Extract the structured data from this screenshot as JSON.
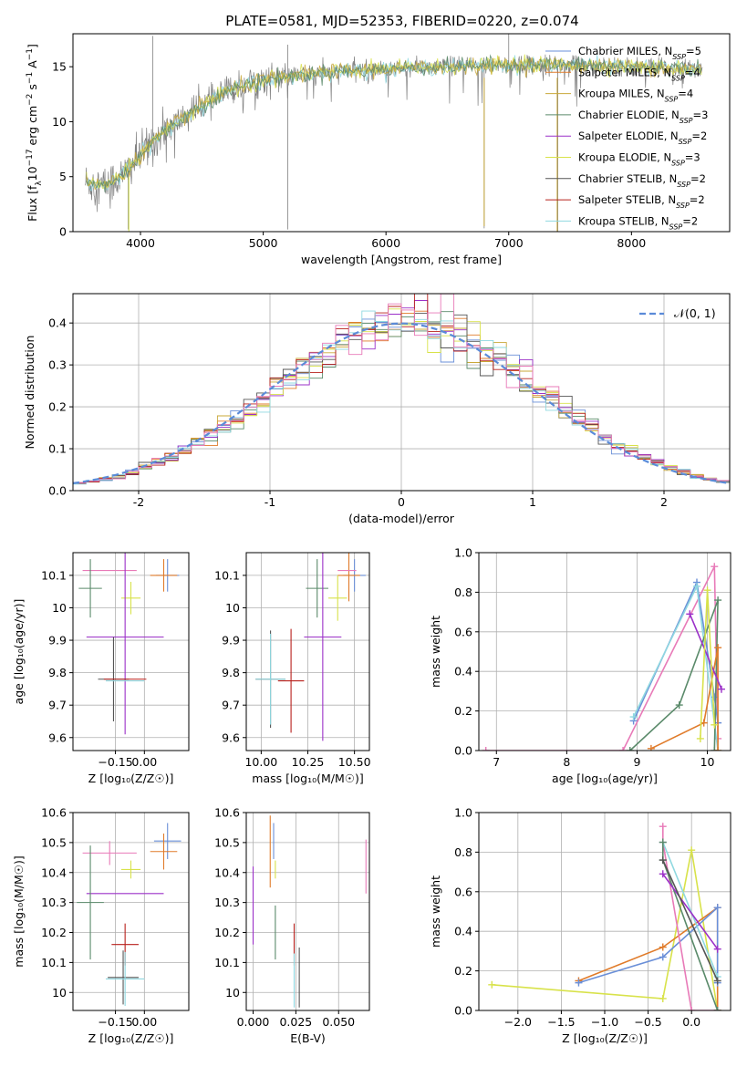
{
  "figure": {
    "title": "PLATE=0581, MJD=52353, FIBERID=0220, z=0.074"
  },
  "colors": {
    "c0": "#6a8fd8",
    "c1": "#e07b2a",
    "c2": "#c9a83a",
    "c3": "#5a8a6a",
    "c4": "#9b30c8",
    "c5": "#d8e24a",
    "c6": "#555555",
    "c7": "#b8201c",
    "c8": "#8fd8e0",
    "pink": "#e87ab8",
    "spec_gray": "#808080",
    "grid": "#b0b0b0",
    "dashed_gauss": "#5b8bd8"
  },
  "chart_data": [
    {
      "id": "spectrum",
      "type": "line",
      "xlabel": "wavelength [Angstrom, rest frame]",
      "ylabel": "Flux [f$_\\lambda$10$^{-17}$ erg cm$^{-2}$ s$^{-1}$ A$^{-1}$]",
      "ylabel_parts": [
        "Flux [f",
        "λ",
        "10",
        "−17",
        " erg cm",
        "−2",
        " s",
        "−1",
        " A",
        "−1",
        "]"
      ],
      "xlim": [
        3450,
        8800
      ],
      "ylim": [
        0,
        18
      ],
      "xticks": [
        4000,
        5000,
        6000,
        7000,
        8000
      ],
      "yticks": [
        0,
        5,
        10,
        15
      ],
      "grid": false,
      "legend_position": "top-right",
      "legend": [
        {
          "model": "Chabrier MILES",
          "nssp": "5"
        },
        {
          "model": "Salpeter MILES",
          "nssp": "4"
        },
        {
          "model": "Kroupa MILES",
          "nssp": "4"
        },
        {
          "model": "Chabrier ELODIE",
          "nssp": "3"
        },
        {
          "model": "Salpeter ELODIE",
          "nssp": "2"
        },
        {
          "model": "Kroupa ELODIE",
          "nssp": "3"
        },
        {
          "model": "Chabrier STELIB",
          "nssp": "2"
        },
        {
          "model": "Salpeter STELIB",
          "nssp": "2"
        },
        {
          "model": "Kroupa STELIB",
          "nssp": "2"
        }
      ],
      "continuum": {
        "x": [
          3550,
          3700,
          3850,
          4000,
          4100,
          4300,
          4500,
          4800,
          5000,
          5500,
          6000,
          6500,
          7000,
          7500,
          8000,
          8500,
          8800
        ],
        "y": [
          4.5,
          4.2,
          5.0,
          7.0,
          8.2,
          10.0,
          11.5,
          13.2,
          13.8,
          14.5,
          14.8,
          15.0,
          15.2,
          15.2,
          15.0,
          14.8,
          14.6
        ]
      },
      "dips": [
        {
          "x": 3900,
          "y": 0.2
        },
        {
          "x": 5200,
          "y": 0.2
        },
        {
          "x": 6800,
          "y": 0.3
        },
        {
          "x": 7400,
          "y": 0.0
        }
      ],
      "spikes": [
        {
          "x": 4100,
          "y": 17.8
        },
        {
          "x": 5200,
          "y": 17.0
        },
        {
          "x": 7000,
          "y": 18.0
        }
      ]
    },
    {
      "id": "residuals",
      "type": "area",
      "xlabel": "(data-model)/error",
      "ylabel": "Normed distribution",
      "xlim": [
        -2.5,
        2.5
      ],
      "ylim": [
        0,
        0.47
      ],
      "xticks": [
        -2,
        -1,
        0,
        1,
        2
      ],
      "yticks": [
        0.0,
        0.1,
        0.2,
        0.3,
        0.4
      ],
      "ytick_labels": [
        "0.0",
        "0.1",
        "0.2",
        "0.3",
        "0.4"
      ],
      "grid": true,
      "legend_position": "top-right",
      "legend_label": "𝒩(0, 1)",
      "bin_width": 0.1
    },
    {
      "id": "age_vs_Z",
      "type": "scatter",
      "xlabel": "Z [log₁₀(Z/Z☉)]",
      "ylabel": "age  [log₁₀(age/yr)]",
      "xlim": [
        -0.37,
        0.23
      ],
      "ylim": [
        9.56,
        10.17
      ],
      "xticks": [
        -0.15,
        0.0
      ],
      "xtick_labels": [
        "−0.15",
        "0.00"
      ],
      "yticks": [
        9.6,
        9.7,
        9.8,
        9.9,
        10.0,
        10.1
      ],
      "grid": true,
      "points": [
        {
          "c": "c0",
          "x": 0.12,
          "y": 10.1,
          "xe": 0.06,
          "ye": 0.05
        },
        {
          "c": "c1",
          "x": 0.1,
          "y": 10.1,
          "xe": 0.07,
          "ye": 0.05
        },
        {
          "c": "pink",
          "x": -0.18,
          "y": 10.115,
          "xe": 0.14,
          "ye": 0.0
        },
        {
          "c": "c3",
          "x": -0.28,
          "y": 10.06,
          "xe": 0.06,
          "ye": 0.09
        },
        {
          "c": "c5",
          "x": -0.07,
          "y": 10.03,
          "xe": 0.05,
          "ye": 0.05
        },
        {
          "c": "c4",
          "x": -0.1,
          "y": 9.91,
          "xe": 0.2,
          "ye": 0.3
        },
        {
          "c": "c6",
          "x": -0.16,
          "y": 9.78,
          "xe": 0.08,
          "ye": 0.13
        },
        {
          "c": "c7",
          "x": -0.1,
          "y": 9.78,
          "xe": 0.11,
          "ye": 0.0
        },
        {
          "c": "c8",
          "x": -0.1,
          "y": 9.775,
          "xe": 0.1,
          "ye": 0.0
        }
      ]
    },
    {
      "id": "age_vs_mass",
      "type": "scatter",
      "xlabel": "mass [log₁₀(M/M☉)]",
      "ylabel": "",
      "xlim": [
        9.92,
        10.58
      ],
      "ylim": [
        9.56,
        10.17
      ],
      "xticks": [
        10.0,
        10.25,
        10.5
      ],
      "xtick_labels": [
        "10.00",
        "10.25",
        "10.50"
      ],
      "yticks": [
        9.6,
        9.7,
        9.8,
        9.9,
        10.0,
        10.1
      ],
      "grid": true,
      "points": [
        {
          "c": "c0",
          "x": 10.5,
          "y": 10.1,
          "xe": 0.06,
          "ye": 0.05
        },
        {
          "c": "c1",
          "x": 10.47,
          "y": 10.1,
          "xe": 0.06,
          "ye": 0.08
        },
        {
          "c": "pink",
          "x": 10.46,
          "y": 10.115,
          "xe": 0.05,
          "ye": 0.0
        },
        {
          "c": "c3",
          "x": 10.3,
          "y": 10.06,
          "xe": 0.06,
          "ye": 0.09
        },
        {
          "c": "c5",
          "x": 10.41,
          "y": 10.03,
          "xe": 0.05,
          "ye": 0.07
        },
        {
          "c": "c4",
          "x": 10.33,
          "y": 9.91,
          "xe": 0.1,
          "ye": 0.32
        },
        {
          "c": "c6",
          "x": 10.05,
          "y": 9.78,
          "xe": 0.08,
          "ye": 0.15
        },
        {
          "c": "c7",
          "x": 10.16,
          "y": 9.775,
          "xe": 0.07,
          "ye": 0.16
        },
        {
          "c": "c8",
          "x": 10.05,
          "y": 9.78,
          "xe": 0.08,
          "ye": 0.14
        }
      ]
    },
    {
      "id": "mass_weight_vs_age",
      "type": "line",
      "xlabel": "age  [log₁₀(age/yr)]",
      "ylabel": "mass weight",
      "xlim": [
        6.75,
        10.33
      ],
      "ylim": [
        0,
        1.0
      ],
      "xticks": [
        7,
        8,
        9,
        10
      ],
      "yticks": [
        0.0,
        0.2,
        0.4,
        0.6,
        0.8,
        1.0
      ],
      "ytick_labels": [
        "0.0",
        "0.2",
        "0.4",
        "0.6",
        "0.8",
        "1.0"
      ],
      "grid": true,
      "series": [
        {
          "c": "pink",
          "x": [
            6.85,
            8.8,
            10.1,
            10.15
          ],
          "y": [
            0.0,
            0.0,
            0.93,
            0.06
          ]
        },
        {
          "c": "c0",
          "x": [
            8.95,
            9.85,
            10.1,
            10.15
          ],
          "y": [
            0.15,
            0.85,
            0.27,
            0.14
          ]
        },
        {
          "c": "c8",
          "x": [
            8.95,
            9.85,
            10.15
          ],
          "y": [
            0.17,
            0.83,
            0.0
          ]
        },
        {
          "c": "c3",
          "x": [
            8.9,
            9.6,
            10.15,
            10.1
          ],
          "y": [
            0.0,
            0.23,
            0.76,
            0.0
          ]
        },
        {
          "c": "c1",
          "x": [
            9.2,
            9.95,
            10.15,
            10.15
          ],
          "y": [
            0.01,
            0.14,
            0.52,
            0.0
          ]
        },
        {
          "c": "c4",
          "x": [
            9.75,
            10.2
          ],
          "y": [
            0.69,
            0.31
          ]
        },
        {
          "c": "c5",
          "x": [
            9.9,
            10.0,
            10.1
          ],
          "y": [
            0.06,
            0.81,
            0.13
          ]
        }
      ]
    },
    {
      "id": "mass_vs_Z",
      "type": "scatter",
      "xlabel": "Z [log₁₀(Z/Z☉)]",
      "ylabel": "mass [log₁₀(M/M☉)]",
      "xlim": [
        -0.37,
        0.23
      ],
      "ylim": [
        9.94,
        10.6
      ],
      "xticks": [
        -0.15,
        0.0
      ],
      "xtick_labels": [
        "−0.15",
        "0.00"
      ],
      "yticks": [
        10.0,
        10.1,
        10.2,
        10.3,
        10.4,
        10.5,
        10.6
      ],
      "grid": true,
      "points": [
        {
          "c": "c0",
          "x": 0.12,
          "y": 10.505,
          "xe": 0.07,
          "ye": 0.06
        },
        {
          "c": "c1",
          "x": 0.1,
          "y": 10.47,
          "xe": 0.07,
          "ye": 0.06
        },
        {
          "c": "pink",
          "x": -0.18,
          "y": 10.465,
          "xe": 0.14,
          "ye": 0.04
        },
        {
          "c": "c5",
          "x": -0.07,
          "y": 10.41,
          "xe": 0.05,
          "ye": 0.03
        },
        {
          "c": "c4",
          "x": -0.1,
          "y": 10.33,
          "xe": 0.2,
          "ye": 0.0
        },
        {
          "c": "c3",
          "x": -0.28,
          "y": 10.3,
          "xe": 0.07,
          "ye": 0.19
        },
        {
          "c": "c7",
          "x": -0.1,
          "y": 10.16,
          "xe": 0.07,
          "ye": 0.07
        },
        {
          "c": "c6",
          "x": -0.11,
          "y": 10.05,
          "xe": 0.08,
          "ye": 0.09
        },
        {
          "c": "c8",
          "x": -0.1,
          "y": 10.045,
          "xe": 0.1,
          "ye": 0.09
        }
      ]
    },
    {
      "id": "mass_vs_EBV",
      "type": "scatter",
      "xlabel": "E(B-V)",
      "ylabel": "",
      "xlim": [
        -0.004,
        0.068
      ],
      "ylim": [
        9.94,
        10.6
      ],
      "xticks": [
        0.0,
        0.025,
        0.05
      ],
      "xtick_labels": [
        "0.000",
        "0.025",
        "0.050"
      ],
      "yticks": [
        10.0,
        10.1,
        10.2,
        10.3,
        10.4,
        10.5,
        10.6
      ],
      "grid": true,
      "points": [
        {
          "c": "c0",
          "x": 0.012,
          "y": 10.505,
          "xe": 0.0,
          "ye": 0.06
        },
        {
          "c": "c1",
          "x": 0.01,
          "y": 10.47,
          "xe": 0.0,
          "ye": 0.12
        },
        {
          "c": "pink",
          "x": 0.066,
          "y": 10.42,
          "xe": 0.0,
          "ye": 0.09
        },
        {
          "c": "c5",
          "x": 0.013,
          "y": 10.41,
          "xe": 0.0,
          "ye": 0.03
        },
        {
          "c": "c4",
          "x": 0.0,
          "y": 10.29,
          "xe": 0.0,
          "ye": 0.13
        },
        {
          "c": "c3",
          "x": 0.013,
          "y": 10.2,
          "xe": 0.0,
          "ye": 0.09
        },
        {
          "c": "c7",
          "x": 0.024,
          "y": 10.16,
          "xe": 0.0,
          "ye": 0.07
        },
        {
          "c": "c6",
          "x": 0.027,
          "y": 10.05,
          "xe": 0.0,
          "ye": 0.1
        },
        {
          "c": "c8",
          "x": 0.024,
          "y": 10.04,
          "xe": 0.0,
          "ye": 0.09
        }
      ]
    },
    {
      "id": "mass_weight_vs_Z",
      "type": "line",
      "xlabel": "Z [log₁₀(Z/Z☉)]",
      "ylabel": "mass weight",
      "xlim": [
        -2.45,
        0.45
      ],
      "ylim": [
        0,
        1.0
      ],
      "xticks": [
        -2.0,
        -1.5,
        -1.0,
        -0.5,
        0.0
      ],
      "xtick_labels": [
        "−2.0",
        "−1.5",
        "−1.0",
        "−0.5",
        "0.0"
      ],
      "yticks": [
        0.0,
        0.2,
        0.4,
        0.6,
        0.8,
        1.0
      ],
      "ytick_labels": [
        "0.0",
        "0.2",
        "0.4",
        "0.6",
        "0.8",
        "1.0"
      ],
      "grid": true,
      "series": [
        {
          "c": "c5",
          "x": [
            -2.3,
            -0.33,
            0.0,
            0.3
          ],
          "y": [
            0.13,
            0.06,
            0.81,
            0.0
          ]
        },
        {
          "c": "c1",
          "x": [
            -1.3,
            -0.33,
            0.3,
            0.3
          ],
          "y": [
            0.15,
            0.32,
            0.52,
            0.0
          ]
        },
        {
          "c": "c0",
          "x": [
            -1.3,
            -0.33,
            0.3,
            0.3
          ],
          "y": [
            0.14,
            0.27,
            0.52,
            0.14
          ]
        },
        {
          "c": "pink",
          "x": [
            -0.33,
            -0.33,
            0.0,
            0.3
          ],
          "y": [
            0.93,
            0.85,
            0.0,
            0.0
          ]
        },
        {
          "c": "c8",
          "x": [
            -0.33,
            0.3
          ],
          "y": [
            0.85,
            0.17
          ]
        },
        {
          "c": "c3",
          "x": [
            -0.33,
            -0.33,
            0.3
          ],
          "y": [
            0.85,
            0.76,
            0.0
          ]
        },
        {
          "c": "c4",
          "x": [
            -0.33,
            0.3
          ],
          "y": [
            0.69,
            0.31
          ]
        },
        {
          "c": "c6",
          "x": [
            -0.33,
            0.3
          ],
          "y": [
            0.76,
            0.15
          ]
        }
      ]
    }
  ]
}
